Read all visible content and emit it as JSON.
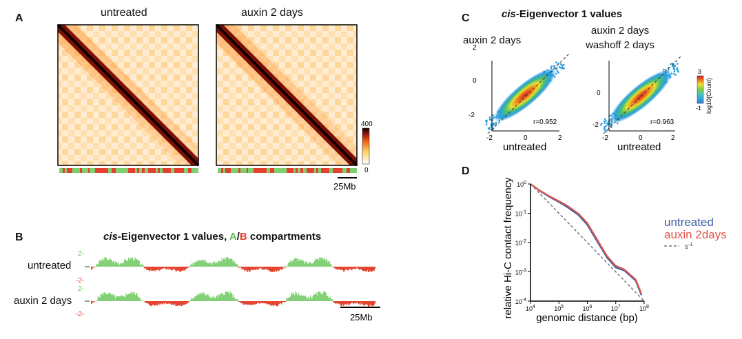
{
  "panel_labels": {
    "a": "A",
    "b": "B",
    "c": "C",
    "d": "D"
  },
  "panel_a": {
    "titles": [
      "untreated",
      "auxin 2 days"
    ],
    "colorbar": {
      "max": "400",
      "min": "0"
    },
    "scale_bar": "25Mb"
  },
  "panel_b": {
    "title_italic": "cis",
    "title_rest": "-Eigenvector 1 values, ",
    "title_a": "A",
    "title_slash": "/",
    "title_b": "B",
    "title_end": " compartments",
    "tracks": [
      "untreated",
      "auxin 2 days"
    ],
    "tick_pos": "2-",
    "tick_neg": "-2-",
    "scale_bar": "25Mb",
    "colors": {
      "A": "#7fcf72",
      "B": "#e4402c"
    }
  },
  "panel_c": {
    "title_italic": "cis",
    "title_rest": "-Eigenvector 1 values",
    "plots": [
      {
        "ylabel": "auxin 2 days",
        "xlabel": "untreated",
        "r": "r=0.952"
      },
      {
        "ylabel": "auxin 2 days washoff 2 days",
        "xlabel": "untreated",
        "r": "r=0.963"
      }
    ],
    "ticks": [
      "-2",
      "0",
      "2"
    ],
    "colorbar": {
      "max": "3",
      "min": "-1",
      "label": "log10(Count)"
    }
  },
  "chart_data": {
    "type": "line",
    "title": "",
    "xlabel": "genomic distance (bp)",
    "ylabel": "relative Hi-C contact frequency",
    "x_scale": "log",
    "y_scale": "log",
    "xlim": [
      10000,
      100000000
    ],
    "ylim": [
      0.0001,
      1
    ],
    "x_ticks": [
      "10^4",
      "10^5",
      "10^6",
      "10^7",
      "10^8"
    ],
    "y_ticks": [
      "10^0",
      "10^-1",
      "10^-2",
      "10^-3",
      "10^-4"
    ],
    "legend_position": "right",
    "series": [
      {
        "name": "untreated",
        "color": "#3c5ea8",
        "x": [
          10000,
          20000,
          50000,
          100000,
          200000,
          500000,
          1000000,
          2000000,
          5000000,
          10000000,
          20000000,
          50000000,
          80000000
        ],
        "y": [
          1.0,
          0.6,
          0.35,
          0.24,
          0.16,
          0.085,
          0.04,
          0.013,
          0.003,
          0.0014,
          0.0011,
          0.0005,
          0.00016
        ]
      },
      {
        "name": "auxin 2days",
        "color": "#e0574a",
        "x": [
          10000,
          20000,
          50000,
          100000,
          200000,
          500000,
          1000000,
          2000000,
          5000000,
          10000000,
          20000000,
          50000000,
          80000000
        ],
        "y": [
          1.0,
          0.62,
          0.37,
          0.26,
          0.18,
          0.095,
          0.046,
          0.015,
          0.0034,
          0.0016,
          0.0012,
          0.00055,
          0.00018
        ]
      },
      {
        "name": "s-1",
        "color": "#777777",
        "dashed": true,
        "x": [
          10000,
          100000000
        ],
        "y": [
          1.0,
          0.0001
        ]
      }
    ]
  }
}
